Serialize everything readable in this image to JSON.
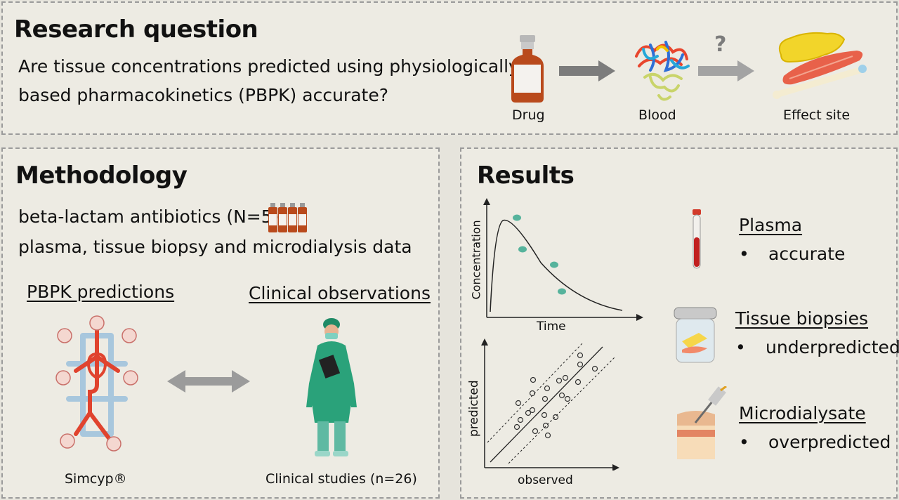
{
  "research": {
    "heading": "Research question",
    "question_line1": "Are tissue concentrations predicted using physiologically",
    "question_line2": "based pharmacokinetics (PBPK) accurate?",
    "flow": {
      "drug_label": "Drug",
      "blood_label": "Blood",
      "effect_label": "Effect site",
      "unknown_mark": "?"
    }
  },
  "methodology": {
    "heading": "Methodology",
    "line1": "beta-lactam antibiotics (N=5)",
    "line2": "plasma, tissue biopsy and microdialysis data",
    "pbpk_title": "PBPK predictions",
    "clinical_title": "Clinical observations",
    "simcyp_label": "Simcyp®",
    "clinical_caption": "Clinical studies (n=26)"
  },
  "results": {
    "heading": "Results",
    "chart1_ylabel": "Concentration",
    "chart1_xlabel": "Time",
    "chart2_ylabel": "predicted",
    "chart2_xlabel": "observed",
    "plasma_title": "Plasma",
    "plasma_result": "accurate",
    "tissue_title": "Tissue biopsies",
    "tissue_result": "underpredicted",
    "micro_title": "Microdialysate",
    "micro_result": "overpredicted",
    "bullet": "•"
  },
  "colors": {
    "panel_bg": "#edebe3",
    "arrow_gray": "#7c7c7c",
    "dot_teal": "#56b39c",
    "surgeon_green": "#2aa27a",
    "artery_red": "#e0432e",
    "vein_blue": "#a8c7dd"
  }
}
